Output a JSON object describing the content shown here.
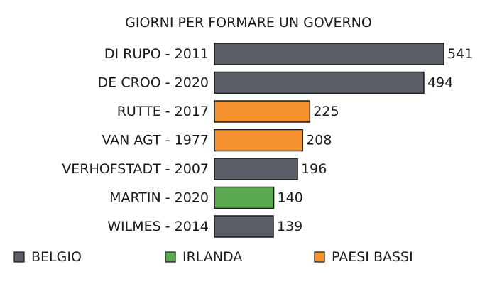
{
  "chart_data": {
    "type": "bar",
    "orientation": "horizontal",
    "title": "GIORNI PER FORMARE UN GOVERNO",
    "xlabel": "",
    "ylabel": "",
    "xlim": [
      0,
      541
    ],
    "grid": false,
    "legend_position": "bottom",
    "categories": [
      "DI RUPO - 2011",
      "DE CROO - 2020",
      "RUTTE - 2017",
      "VAN AGT - 1977",
      "VERHOFSTADT - 2007",
      "MARTIN - 2020",
      "WILMES - 2014"
    ],
    "values": [
      541,
      494,
      225,
      208,
      196,
      140,
      139
    ],
    "groups": [
      "BELGIO",
      "BELGIO",
      "PAESI BASSI",
      "PAESI BASSI",
      "BELGIO",
      "IRLANDA",
      "BELGIO"
    ],
    "legend": [
      {
        "name": "BELGIO",
        "color": "#5b5e66"
      },
      {
        "name": "IRLANDA",
        "color": "#5aa84f"
      },
      {
        "name": "PAESI BASSI",
        "color": "#f5922f"
      }
    ]
  }
}
